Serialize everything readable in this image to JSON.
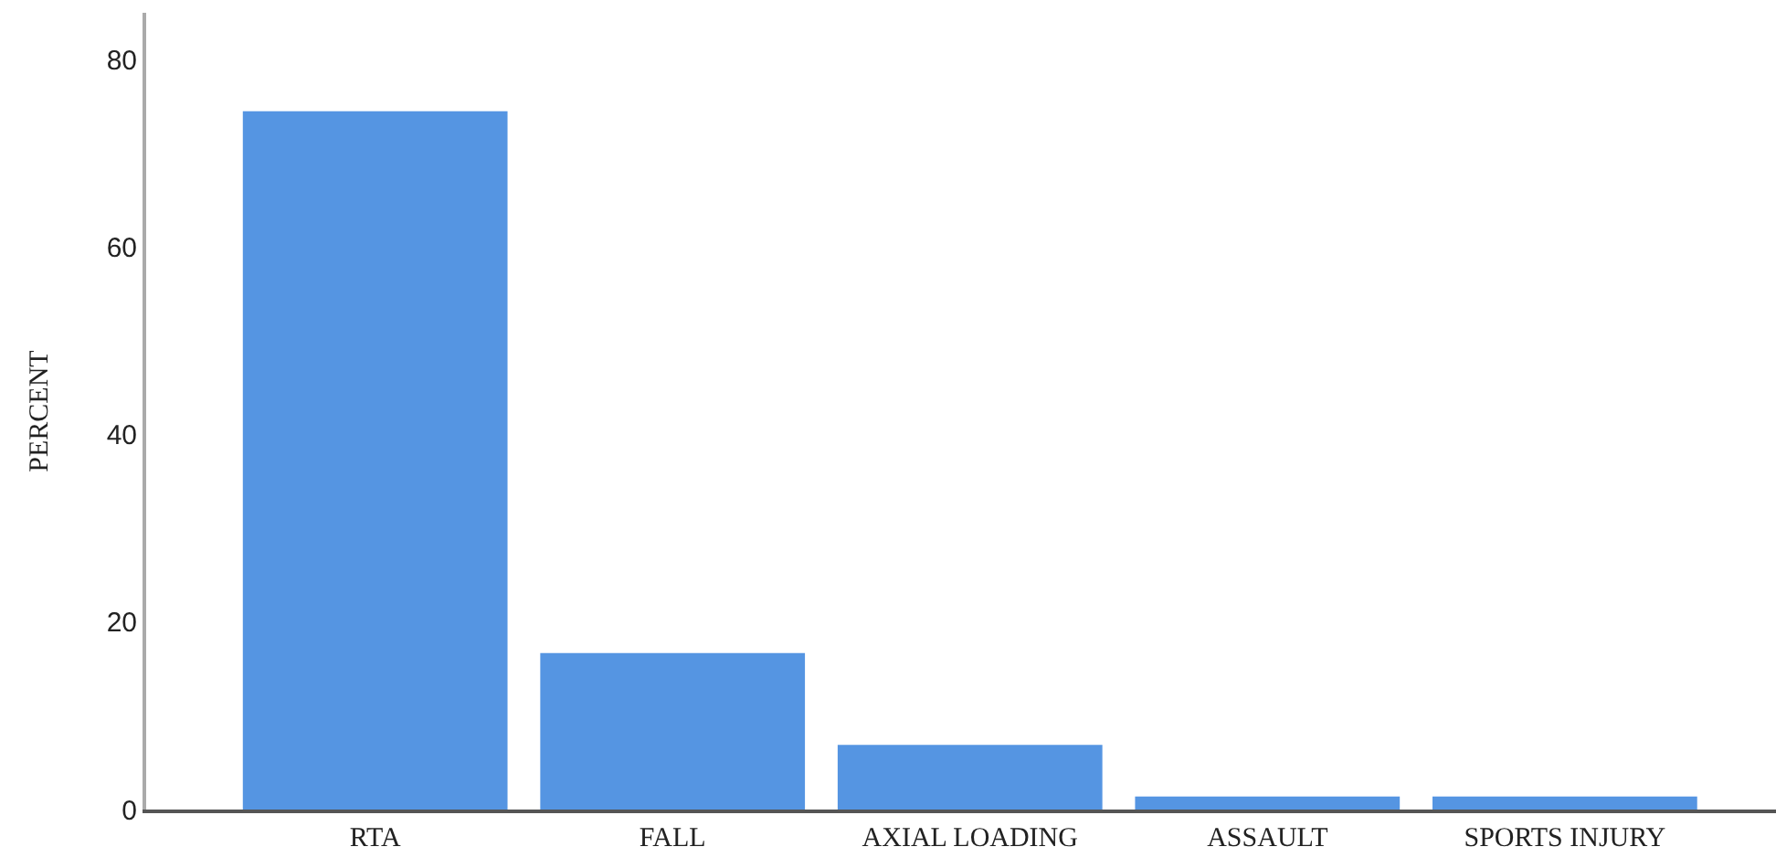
{
  "chart_data": {
    "type": "bar",
    "ylabel": "PERCENT",
    "categories": [
      "RTA",
      "FALL",
      "AXIAL LOADING",
      "ASSAULT",
      "SPORTS INJURY"
    ],
    "values": [
      74.5,
      16.7,
      6.9,
      1.4,
      1.4
    ],
    "color": "#5595e2",
    "ylim": [
      0,
      85
    ],
    "yticks": [
      0,
      20,
      40,
      60,
      80
    ]
  }
}
